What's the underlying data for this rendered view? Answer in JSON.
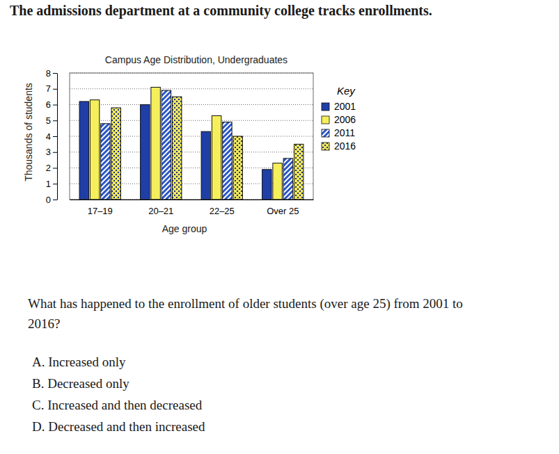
{
  "header": "The admissions department at a community college tracks enrollments.",
  "chart_data": {
    "type": "bar",
    "title": "Campus Age Distribution, Undergraduates",
    "x_label": "Age group",
    "y_label": "Thousands of students",
    "categories": [
      "17–19",
      "20–21",
      "22–25",
      "Over 25"
    ],
    "legend_title": "Key",
    "series": [
      {
        "name": "2001",
        "color": "#1f3fa6",
        "values": [
          6.2,
          6.0,
          4.3,
          1.9
        ]
      },
      {
        "name": "2006",
        "color": "#f5ef5c",
        "values": [
          6.3,
          7.1,
          5.3,
          2.3
        ]
      },
      {
        "name": "2011",
        "color": "#2a56c6",
        "values": [
          4.8,
          6.9,
          4.9,
          2.6
        ]
      },
      {
        "name": "2016",
        "color": "#eee55a",
        "values": [
          5.8,
          6.5,
          4.0,
          3.5
        ]
      }
    ],
    "ylim": [
      0,
      8
    ],
    "yticks": [
      0,
      1,
      2,
      3,
      4,
      5,
      6,
      7,
      8
    ],
    "grid": true,
    "legend": "right"
  },
  "question": [
    "What has happened to the enrollment of older students (over age 25) from 2001 to",
    "2016?"
  ],
  "options": [
    "A. Increased only",
    "B. Decreased only",
    "C. Increased and then decreased",
    "D. Decreased and then increased"
  ]
}
